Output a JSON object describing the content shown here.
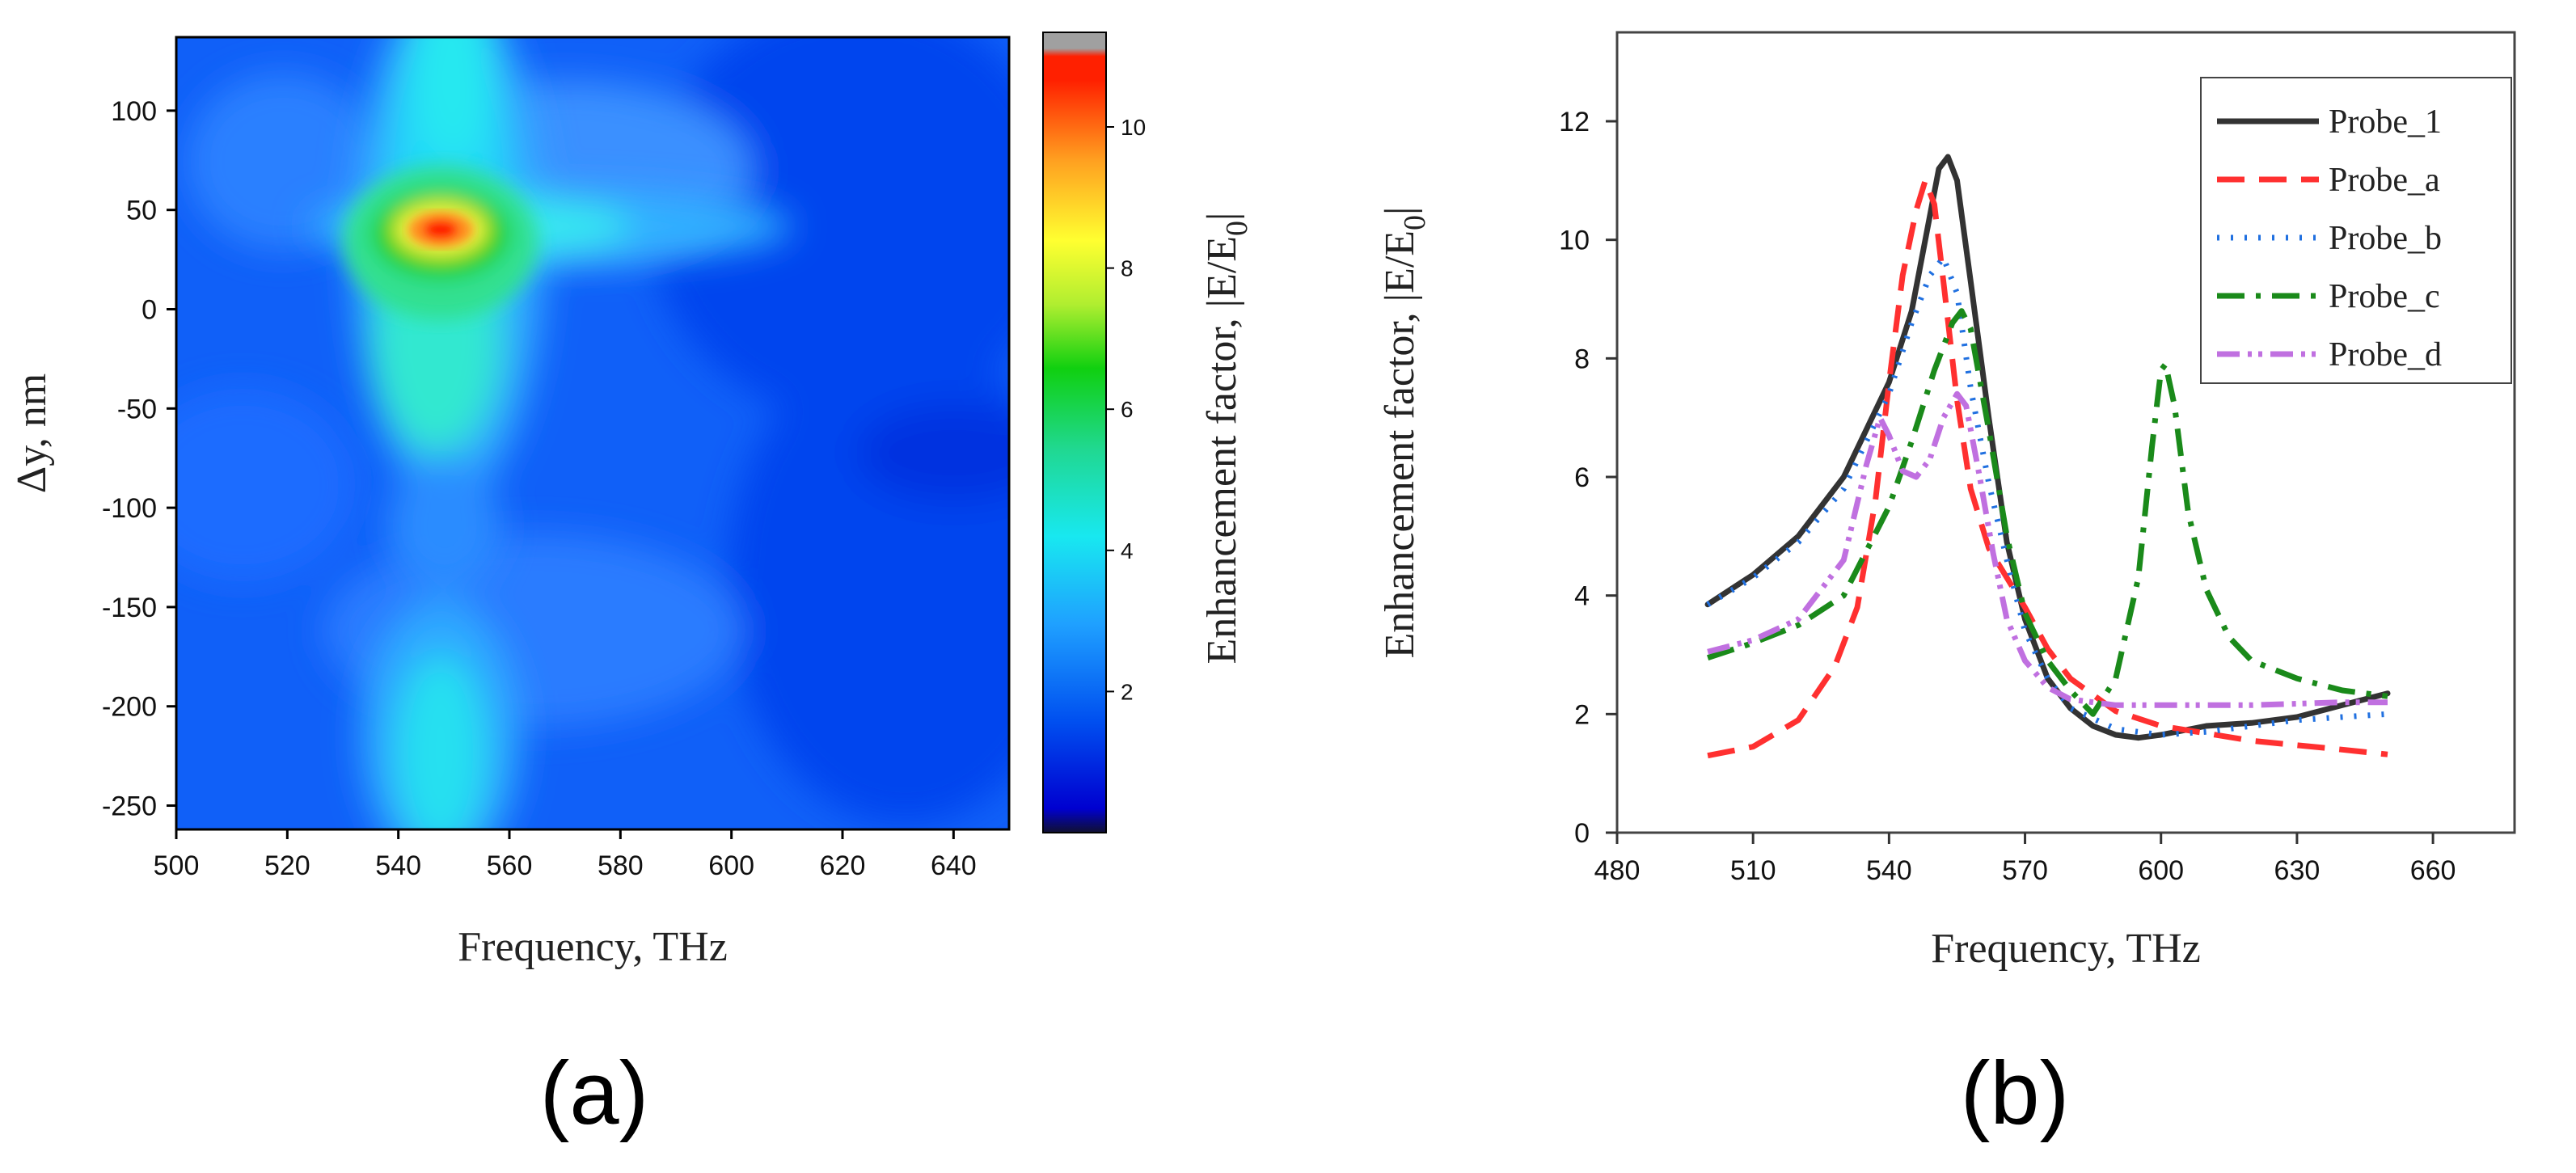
{
  "chart_data": [
    {
      "type": "heatmap",
      "panel_label": "(a)",
      "xlabel": "Frequency, THz",
      "ylabel": "Δy, nm",
      "xlim": [
        500,
        650
      ],
      "ylim": [
        -262,
        137
      ],
      "xticks": [
        500,
        520,
        540,
        560,
        580,
        600,
        620,
        640
      ],
      "xtick_labels": [
        "500",
        "520",
        "540",
        "560",
        "580",
        "600",
        "620",
        "640"
      ],
      "yticks": [
        100,
        50,
        0,
        -50,
        -100,
        -150,
        -200,
        -250
      ],
      "ytick_labels": [
        "100",
        "50",
        "0",
        "-50",
        "-100",
        "-150",
        "-200",
        "-250"
      ],
      "colorbar": {
        "label": "Enhancement factor, |E/E0|",
        "label_main": "Enhancement factor, |E/E",
        "label_sub": "0",
        "label_end": "|",
        "range": [
          0,
          11
        ],
        "ticks": [
          2,
          4,
          6,
          8,
          10
        ],
        "tick_labels": [
          "2",
          "4",
          "6",
          "8",
          "10"
        ]
      },
      "features": [
        {
          "name": "hotspot",
          "x": 548,
          "y": 38,
          "value": 11
        },
        {
          "name": "horizontal-band",
          "x": [
            530,
            600
          ],
          "y": 38,
          "value": 3
        },
        {
          "name": "vertical-column-top",
          "x": 548,
          "y": [
            -80,
            137
          ],
          "value": 4
        },
        {
          "name": "vertical-column-bottom",
          "x": 548,
          "y": [
            -262,
            -160
          ],
          "value": 2.5
        }
      ]
    },
    {
      "type": "line",
      "panel_label": "(b)",
      "xlabel": "Frequency, THz",
      "ylabel": "Enhancement factor, |E/E0|",
      "ylabel_main": "Enhancement factor, |E/E",
      "ylabel_sub": "0",
      "ylabel_end": "|",
      "xlim": [
        480,
        678
      ],
      "ylim": [
        0,
        13.5
      ],
      "xticks": [
        480,
        510,
        540,
        570,
        600,
        630,
        660
      ],
      "xtick_labels": [
        "480",
        "510",
        "540",
        "570",
        "600",
        "630",
        "660"
      ],
      "yticks": [
        0,
        2,
        4,
        6,
        8,
        10,
        12
      ],
      "ytick_labels": [
        "0",
        "2",
        "4",
        "6",
        "8",
        "10",
        "12"
      ],
      "legend": "top-right",
      "series": [
        {
          "name": "Probe_1",
          "color": "#333333",
          "dash": "",
          "x": [
            500,
            510,
            520,
            530,
            540,
            545,
            548,
            551,
            553,
            555,
            558,
            562,
            566,
            570,
            575,
            580,
            585,
            590,
            595,
            600,
            610,
            620,
            630,
            640,
            650
          ],
          "y": [
            3.85,
            4.35,
            5.0,
            6.0,
            7.6,
            8.8,
            10.0,
            11.2,
            11.4,
            11.0,
            9.3,
            7.0,
            4.9,
            3.6,
            2.6,
            2.1,
            1.8,
            1.65,
            1.6,
            1.65,
            1.8,
            1.85,
            1.95,
            2.15,
            2.35
          ]
        },
        {
          "name": "Probe_a",
          "color": "#ff3030",
          "dash": "34 18",
          "x": [
            500,
            510,
            520,
            528,
            533,
            537,
            540,
            543,
            546,
            548,
            550,
            552,
            555,
            558,
            562,
            566,
            570,
            575,
            580,
            590,
            600,
            620,
            640,
            650
          ],
          "y": [
            1.3,
            1.45,
            1.9,
            2.8,
            3.8,
            5.6,
            7.6,
            9.4,
            10.5,
            11.0,
            10.6,
            9.3,
            7.3,
            5.8,
            4.8,
            4.3,
            3.8,
            3.1,
            2.6,
            2.05,
            1.8,
            1.55,
            1.4,
            1.32
          ]
        },
        {
          "name": "Probe_b",
          "color": "#2070e0",
          "dash": "3 14",
          "x": [
            500,
            510,
            520,
            530,
            540,
            545,
            549,
            552,
            555,
            558,
            562,
            566,
            570,
            575,
            580,
            590,
            600,
            610,
            620,
            630,
            640,
            650
          ],
          "y": [
            3.85,
            4.3,
            4.9,
            5.8,
            7.4,
            8.6,
            9.4,
            9.7,
            9.1,
            7.5,
            5.9,
            4.6,
            3.4,
            2.6,
            2.1,
            1.75,
            1.65,
            1.7,
            1.8,
            1.9,
            1.95,
            2.0
          ]
        },
        {
          "name": "Probe_c",
          "color": "#1a8a1a",
          "dash": "34 14 6 14",
          "x": [
            500,
            510,
            520,
            530,
            540,
            545,
            550,
            554,
            556,
            558,
            562,
            566,
            570,
            575,
            580,
            585,
            590,
            595,
            598,
            600,
            601,
            603,
            606,
            610,
            615,
            620,
            630,
            640,
            650
          ],
          "y": [
            2.95,
            3.2,
            3.5,
            4.0,
            5.5,
            6.6,
            7.8,
            8.6,
            8.8,
            8.5,
            6.8,
            5.0,
            3.7,
            2.9,
            2.4,
            2.0,
            2.6,
            4.3,
            6.5,
            7.8,
            7.9,
            7.2,
            5.4,
            4.1,
            3.3,
            2.9,
            2.6,
            2.4,
            2.3
          ]
        },
        {
          "name": "Probe_d",
          "color": "#c070e0",
          "dash": "28 10 5 8 5 10",
          "x": [
            500,
            510,
            520,
            530,
            535,
            538,
            540,
            543,
            546,
            549,
            552,
            555,
            557,
            560,
            563,
            566,
            570,
            575,
            580,
            590,
            600,
            620,
            640,
            650
          ],
          "y": [
            3.05,
            3.25,
            3.6,
            4.6,
            6.2,
            7.0,
            6.7,
            6.1,
            6.0,
            6.3,
            7.0,
            7.4,
            7.2,
            6.0,
            4.7,
            3.6,
            2.9,
            2.45,
            2.25,
            2.15,
            2.15,
            2.15,
            2.2,
            2.2
          ]
        }
      ]
    }
  ]
}
